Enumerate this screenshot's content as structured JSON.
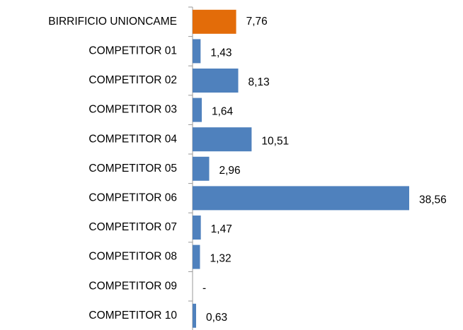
{
  "chart_data": {
    "type": "barh",
    "categories": [
      "BIRRIFICIO UNIONCAME",
      "COMPETITOR 01",
      "COMPETITOR 02",
      "COMPETITOR 03",
      "COMPETITOR 04",
      "COMPETITOR 05",
      "COMPETITOR 06",
      "COMPETITOR 07",
      "COMPETITOR 08",
      "COMPETITOR 09",
      "COMPETITOR 10"
    ],
    "values": [
      7.76,
      1.43,
      8.13,
      1.64,
      10.51,
      2.96,
      38.56,
      1.47,
      1.32,
      null,
      0.63
    ],
    "value_labels": [
      "7,76",
      "1,43",
      "8,13",
      "1,64",
      "10,51",
      "2,96",
      "38,56",
      "1,47",
      "1,32",
      "-",
      "0,63"
    ],
    "colors": [
      "#e36c09",
      "#4f81bd",
      "#4f81bd",
      "#4f81bd",
      "#4f81bd",
      "#4f81bd",
      "#4f81bd",
      "#4f81bd",
      "#4f81bd",
      "#4f81bd",
      "#4f81bd"
    ],
    "value_label_colors": [
      "#c00000",
      "#000000",
      "#000000",
      "#000000",
      "#000000",
      "#000000",
      "#000000",
      "#000000",
      "#000000",
      "#000000",
      "#000000"
    ]
  }
}
